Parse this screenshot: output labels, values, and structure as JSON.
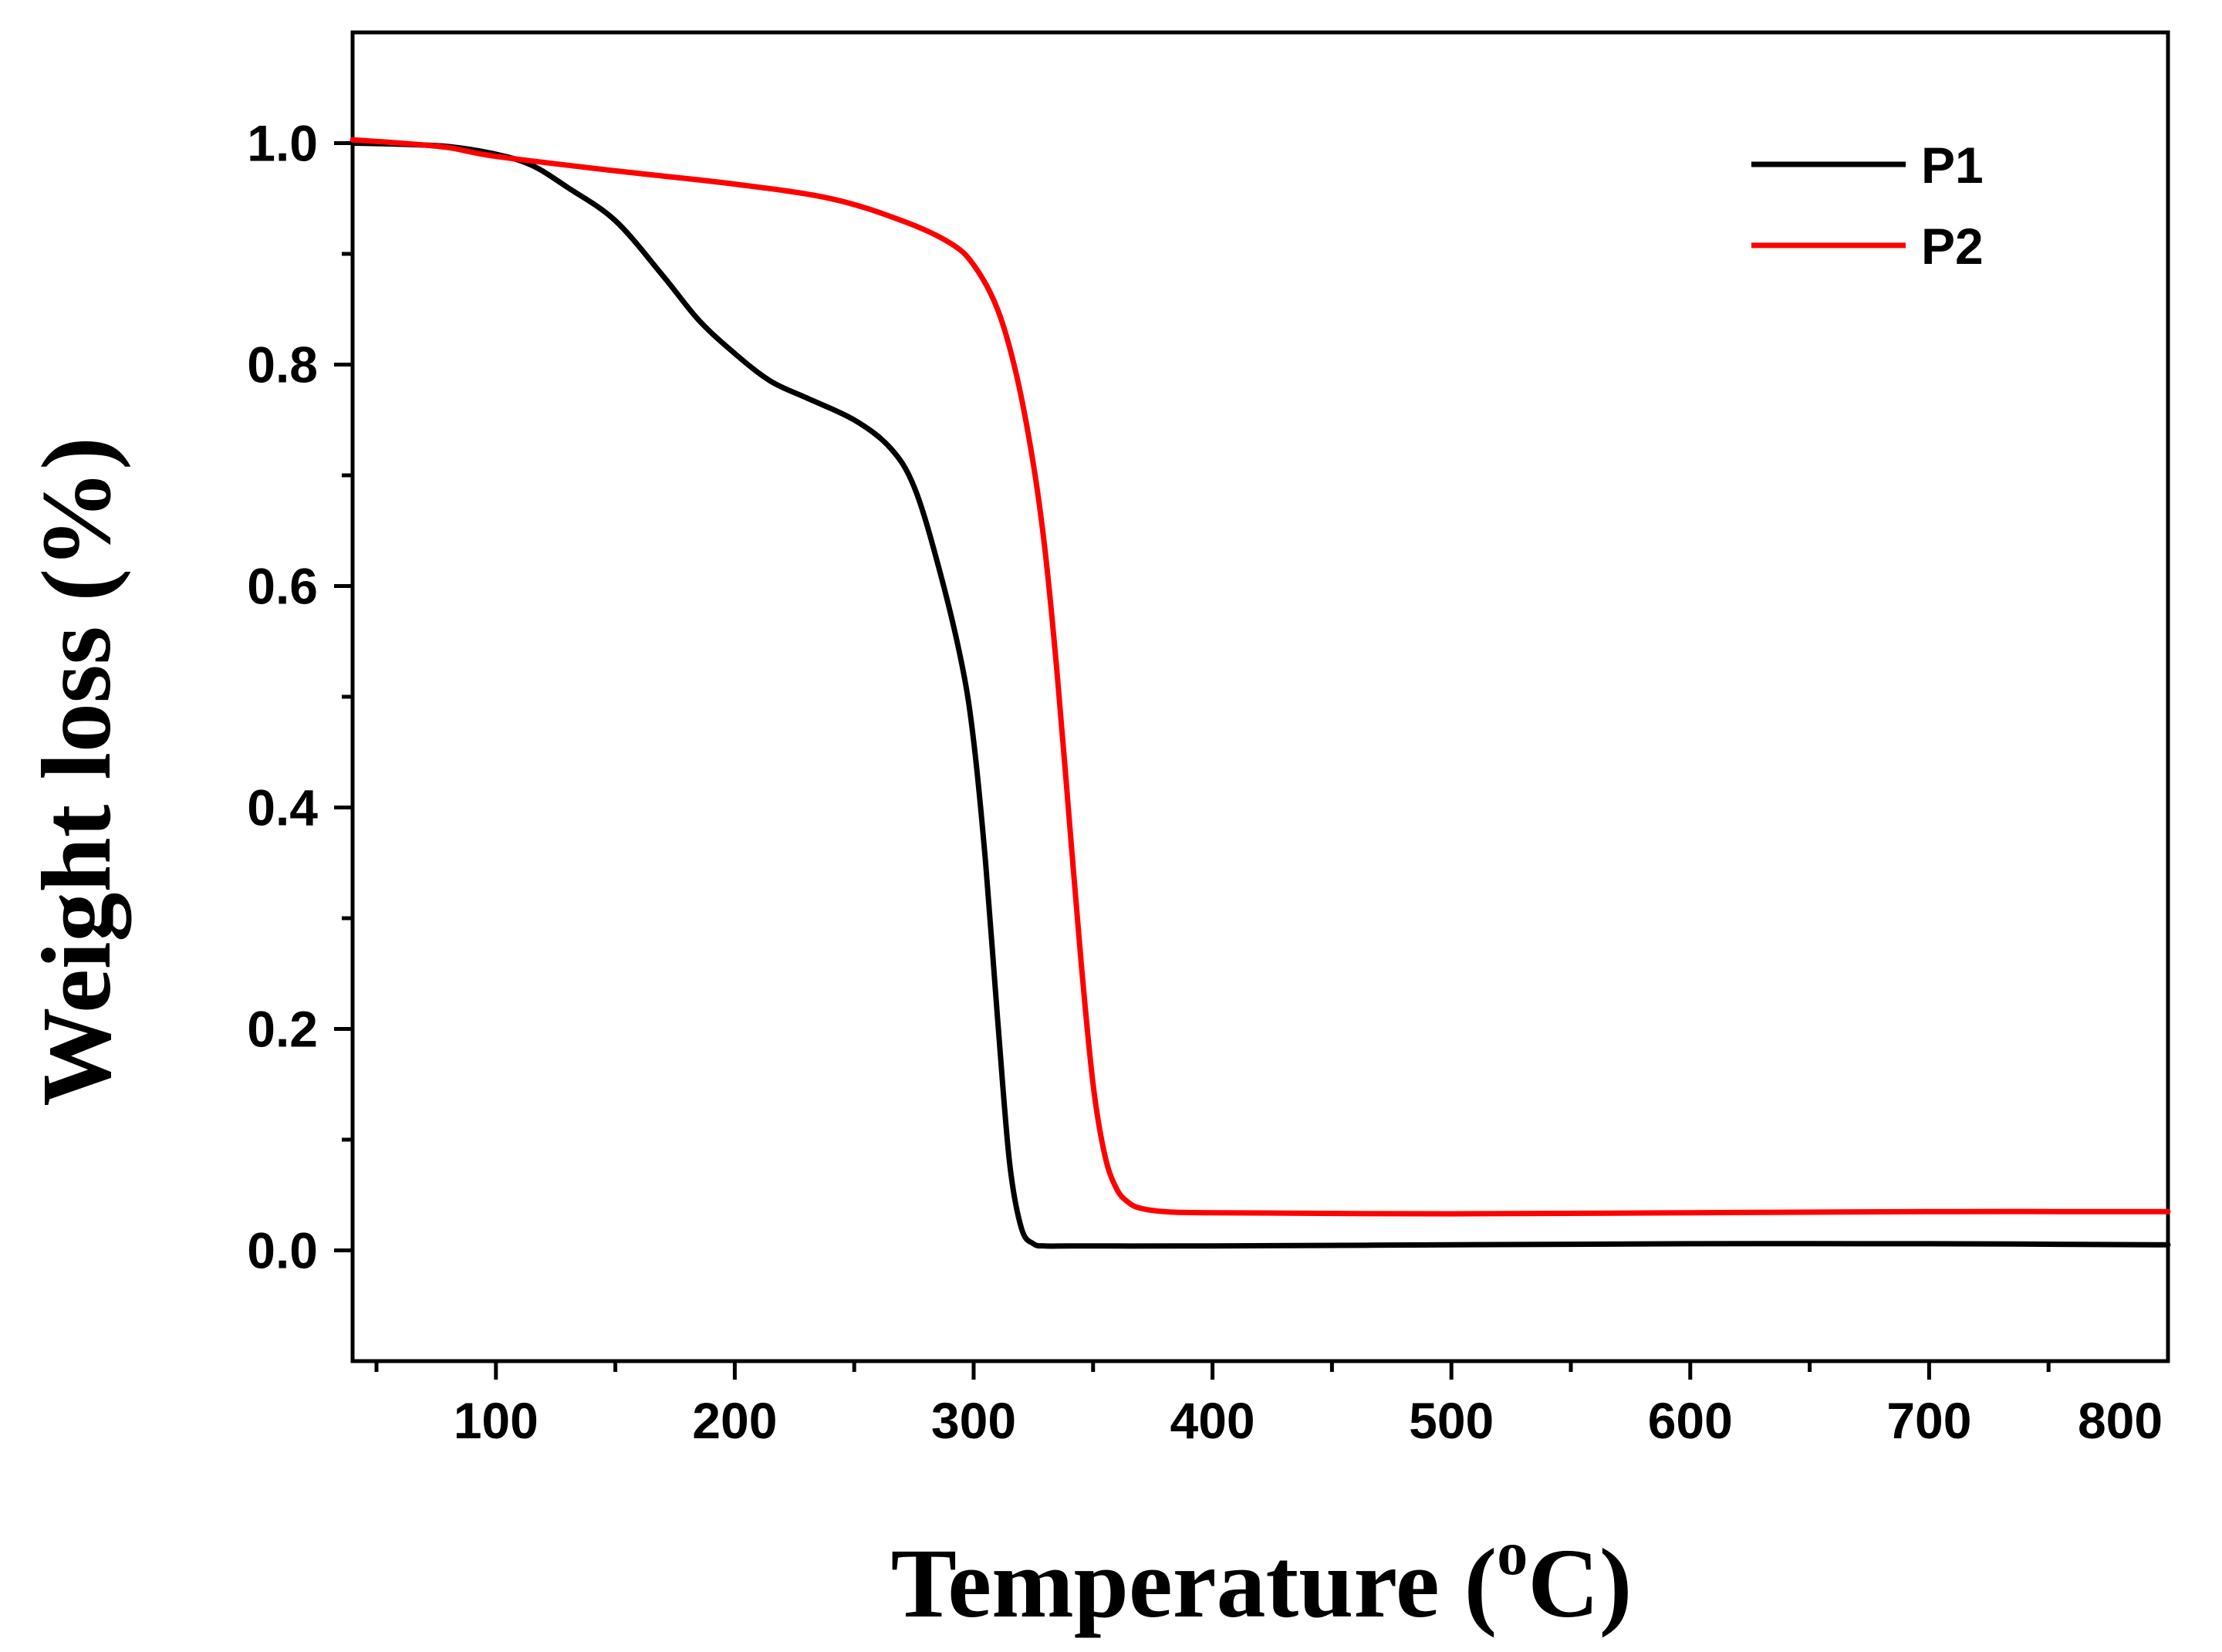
{
  "chart_data": {
    "type": "line",
    "title": "",
    "xlabel": "Temperature (",
    "xlabel_sup": "o",
    "xlabel_end": "C)",
    "ylabel": "Weight loss (%)",
    "xlim": [
      40,
      800
    ],
    "ylim": [
      -0.1,
      1.1
    ],
    "xticks": [
      100,
      200,
      300,
      400,
      500,
      600,
      700,
      800
    ],
    "xtick_labels": [
      "100",
      "200",
      "300",
      "400",
      "500",
      "600",
      "700",
      "800"
    ],
    "yticks": [
      0.0,
      0.2,
      0.4,
      0.6,
      0.8,
      1.0
    ],
    "ytick_labels": [
      "0.0",
      "0.2",
      "0.4",
      "0.6",
      "0.8",
      "1.0"
    ],
    "x_minor_step": 50,
    "y_minor_step": 0.1,
    "legend_position": "top-right",
    "series": [
      {
        "name": "P1",
        "color": "#000000",
        "x": [
          40,
          60,
          80,
          100,
          115,
          130,
          150,
          170,
          185,
          200,
          215,
          230,
          250,
          265,
          275,
          285,
          295,
          300,
          305,
          310,
          315,
          320,
          325,
          330,
          340,
          360,
          400,
          500,
          600,
          700,
          800
        ],
        "y": [
          1.0,
          0.999,
          0.997,
          0.99,
          0.98,
          0.96,
          0.93,
          0.88,
          0.84,
          0.81,
          0.785,
          0.77,
          0.75,
          0.725,
          0.69,
          0.62,
          0.53,
          0.46,
          0.35,
          0.21,
          0.08,
          0.02,
          0.006,
          0.004,
          0.004,
          0.004,
          0.004,
          0.005,
          0.006,
          0.006,
          0.005
        ]
      },
      {
        "name": "P2",
        "color": "#ff0000",
        "x": [
          40,
          60,
          80,
          100,
          150,
          200,
          240,
          270,
          290,
          300,
          310,
          318,
          325,
          330,
          335,
          340,
          345,
          350,
          355,
          360,
          365,
          370,
          380,
          400,
          500,
          600,
          700,
          800
        ],
        "y": [
          1.003,
          1.0,
          0.996,
          0.988,
          0.975,
          0.963,
          0.95,
          0.93,
          0.91,
          0.89,
          0.85,
          0.79,
          0.71,
          0.63,
          0.52,
          0.39,
          0.26,
          0.15,
          0.085,
          0.055,
          0.043,
          0.038,
          0.035,
          0.034,
          0.033,
          0.034,
          0.035,
          0.035
        ]
      }
    ]
  }
}
